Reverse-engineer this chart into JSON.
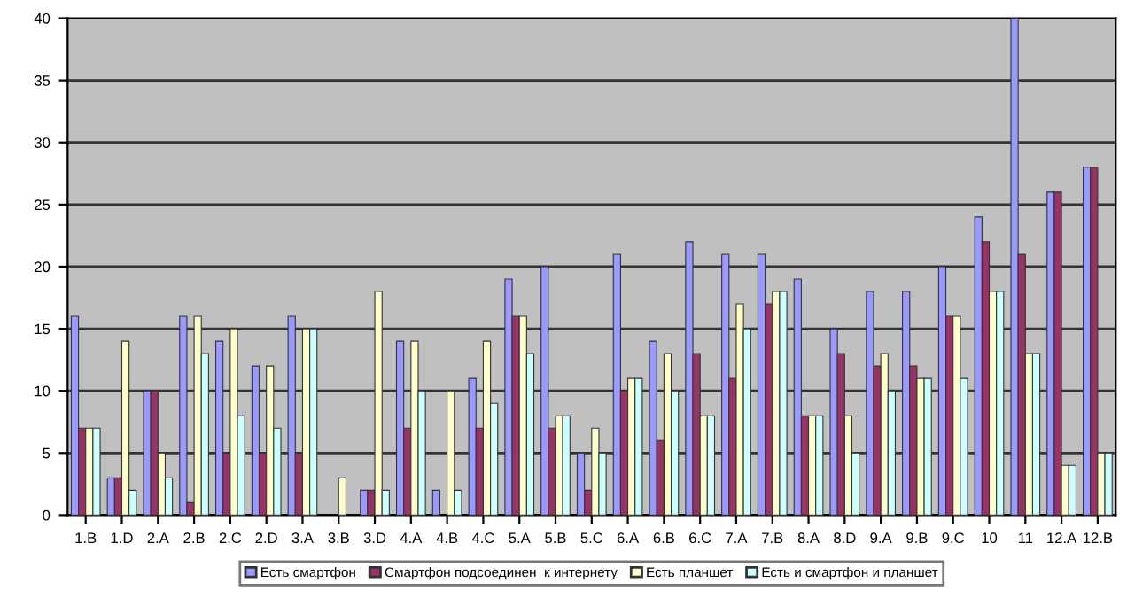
{
  "chart_data": {
    "type": "bar",
    "categories": [
      "1.B",
      "1.D",
      "2.A",
      "2.B",
      "2.C",
      "2.D",
      "3.A",
      "3.B",
      "3.D",
      "4.A",
      "4.B",
      "4.C",
      "5.A",
      "5.B",
      "5.C",
      "6.A",
      "6.B",
      "6.C",
      "7.A",
      "7.B",
      "8.A",
      "8.D",
      "9.A",
      "9.B",
      "9.C",
      "10",
      "11",
      "12.A",
      "12.B"
    ],
    "series": [
      {
        "name": "Есть смартфон",
        "color": "#9999ff",
        "values": [
          16,
          3,
          10,
          16,
          14,
          12,
          16,
          0,
          2,
          14,
          2,
          11,
          19,
          20,
          5,
          21,
          14,
          22,
          21,
          21,
          19,
          15,
          18,
          18,
          20,
          24,
          40,
          26,
          28
        ]
      },
      {
        "name": "Смартфон подсоединен  к интернету",
        "color": "#993366",
        "values": [
          7,
          3,
          10,
          1,
          5,
          5,
          5,
          0,
          2,
          7,
          0,
          7,
          16,
          7,
          2,
          10,
          6,
          13,
          11,
          17,
          8,
          13,
          12,
          12,
          16,
          22,
          21,
          26,
          28
        ]
      },
      {
        "name": "Есть планшет",
        "color": "#ffffcc",
        "values": [
          7,
          14,
          5,
          16,
          15,
          12,
          15,
          3,
          18,
          14,
          10,
          14,
          16,
          8,
          7,
          11,
          13,
          8,
          17,
          18,
          8,
          8,
          13,
          11,
          16,
          18,
          13,
          4,
          5
        ]
      },
      {
        "name": "Есть и смартфон и планшет",
        "color": "#ccffff",
        "values": [
          7,
          2,
          3,
          13,
          8,
          7,
          15,
          0,
          2,
          10,
          2,
          9,
          13,
          8,
          5,
          11,
          10,
          8,
          15,
          18,
          8,
          5,
          10,
          11,
          11,
          18,
          13,
          4,
          5
        ]
      }
    ],
    "ylim": [
      0,
      40
    ],
    "yticks": [
      0,
      5,
      10,
      15,
      20,
      25,
      30,
      35,
      40
    ],
    "grid": "y",
    "legend": "bottom"
  }
}
